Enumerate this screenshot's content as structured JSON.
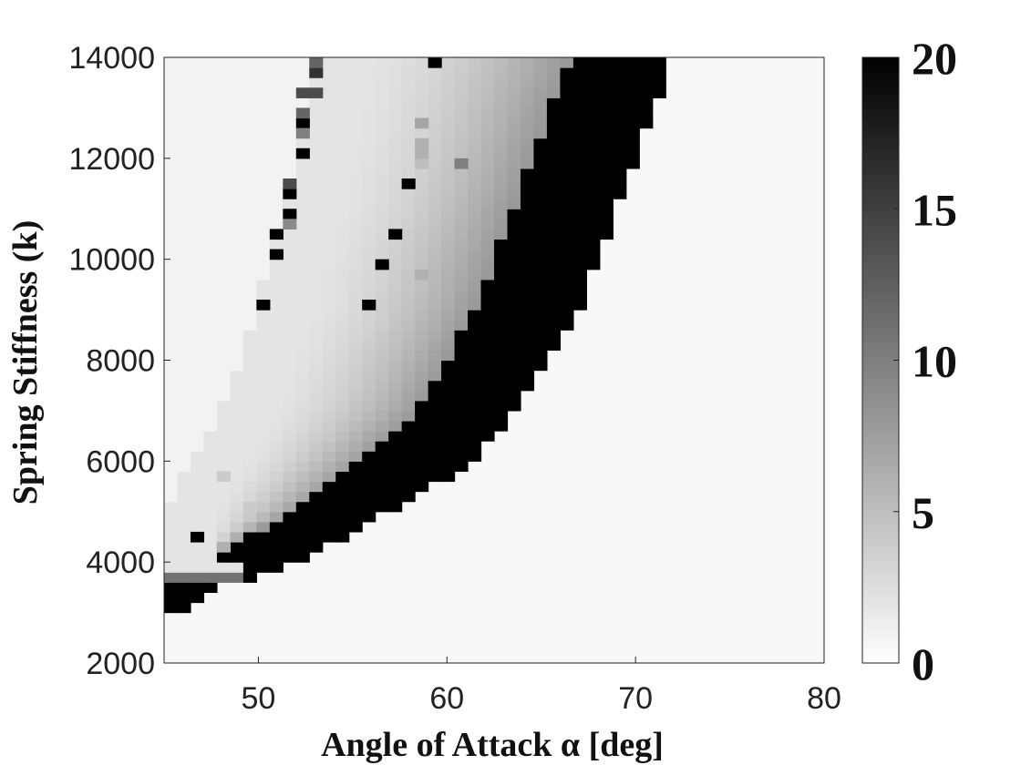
{
  "chart_data": {
    "type": "heatmap",
    "title": "",
    "xlabel": "Angle of Attack α [deg]",
    "ylabel": "Spring Stiffness (k)",
    "xlim": [
      45,
      80
    ],
    "ylim": [
      2000,
      14000
    ],
    "x_ticks": [
      50,
      60,
      70,
      80
    ],
    "x_tick_labels": [
      "50",
      "60",
      "70",
      "80"
    ],
    "y_ticks": [
      2000,
      4000,
      6000,
      8000,
      10000,
      12000,
      14000
    ],
    "y_tick_labels": [
      "2000",
      "4000",
      "6000",
      "8000",
      "10000",
      "12000",
      "14000"
    ],
    "grid": false,
    "colormap": "gray-reversed",
    "color_range": [
      0,
      20
    ],
    "colorbar_ticks": [
      0,
      5,
      10,
      15,
      20
    ],
    "colorbar_tick_labels": [
      "0",
      "5",
      "10",
      "15",
      "20"
    ],
    "background_value": 0.5,
    "cell_width_deg": 0.7,
    "cell_height_k": 200,
    "row_profiles": [
      {
        "k": 3000,
        "a0": 45,
        "a1": 46.2,
        "lo": 20,
        "hi": 20,
        "b0": 46.2,
        "b1": 46.2
      },
      {
        "k": 3600,
        "a0": 45,
        "a1": 48.5,
        "lo": 20,
        "hi": 20,
        "b0": 48.5,
        "b1": 48.5
      },
      {
        "k": 3800,
        "a0": 45,
        "a1": 50.0,
        "lo": 2,
        "hi": 20,
        "b0": 50.0,
        "b1": 51.2
      },
      {
        "k": 4200,
        "a0": 45,
        "a1": 47.5,
        "lo": 2,
        "hi": 20,
        "b0": 47.5,
        "b1": 53.0
      },
      {
        "k": 5000,
        "a0": 45,
        "a1": 47.5,
        "lo": 2,
        "hi": 20,
        "b0": 52.0,
        "b1": 57.0
      },
      {
        "k": 6000,
        "a0": 46.5,
        "a1": 49.0,
        "lo": 2,
        "hi": 20,
        "b0": 55.5,
        "b1": 61.5
      },
      {
        "k": 7000,
        "a0": 48.0,
        "a1": 50.5,
        "lo": 2,
        "hi": 20,
        "b0": 58.5,
        "b1": 63.5
      },
      {
        "k": 8000,
        "a0": 49.0,
        "a1": 51.5,
        "lo": 2,
        "hi": 20,
        "b0": 60.0,
        "b1": 65.5
      },
      {
        "k": 9000,
        "a0": 50.0,
        "a1": 52.5,
        "lo": 2,
        "hi": 20,
        "b0": 61.5,
        "b1": 67.0
      },
      {
        "k": 10000,
        "a0": 50.5,
        "a1": 53.0,
        "lo": 2,
        "hi": 20,
        "b0": 62.5,
        "b1": 68.0
      },
      {
        "k": 11000,
        "a0": 51.5,
        "a1": 54.0,
        "lo": 2,
        "hi": 20,
        "b0": 63.5,
        "b1": 69.0
      },
      {
        "k": 12000,
        "a0": 52.0,
        "a1": 54.5,
        "lo": 2,
        "hi": 20,
        "b0": 64.5,
        "b1": 70.0
      },
      {
        "k": 13000,
        "a0": 52.5,
        "a1": 55.0,
        "lo": 2,
        "hi": 20,
        "b0": 65.5,
        "b1": 71.0
      },
      {
        "k": 14000,
        "a0": 53.0,
        "a1": 55.5,
        "lo": 2,
        "hi": 20,
        "b0": 66.5,
        "b1": 72.0
      }
    ],
    "outliers": [
      {
        "alpha": 46.6,
        "k": 4400,
        "value": 20
      },
      {
        "alpha": 48.0,
        "k": 4200,
        "value": 6
      },
      {
        "alpha": 48.4,
        "k": 5700,
        "value": 4
      },
      {
        "alpha": 49.2,
        "k": 5000,
        "value": 4
      },
      {
        "alpha": 50.3,
        "k": 9000,
        "value": 20
      },
      {
        "alpha": 51.0,
        "k": 10000,
        "value": 20
      },
      {
        "alpha": 51.0,
        "k": 10400,
        "value": 20
      },
      {
        "alpha": 51.7,
        "k": 10800,
        "value": 20
      },
      {
        "alpha": 51.7,
        "k": 11200,
        "value": 20
      },
      {
        "alpha": 51.7,
        "k": 11400,
        "value": 14
      },
      {
        "alpha": 51.7,
        "k": 10600,
        "value": 9
      },
      {
        "alpha": 52.3,
        "k": 12000,
        "value": 20
      },
      {
        "alpha": 52.3,
        "k": 12600,
        "value": 20
      },
      {
        "alpha": 52.3,
        "k": 12400,
        "value": 10
      },
      {
        "alpha": 52.3,
        "k": 12800,
        "value": 12
      },
      {
        "alpha": 52.3,
        "k": 13200,
        "value": 14
      },
      {
        "alpha": 53.0,
        "k": 13200,
        "value": 14
      },
      {
        "alpha": 53.0,
        "k": 13600,
        "value": 16
      },
      {
        "alpha": 53.0,
        "k": 13800,
        "value": 12
      },
      {
        "alpha": 53.0,
        "k": 14000,
        "value": 10
      },
      {
        "alpha": 56.0,
        "k": 9000,
        "value": 20
      },
      {
        "alpha": 56.8,
        "k": 9800,
        "value": 20
      },
      {
        "alpha": 57.4,
        "k": 10400,
        "value": 20
      },
      {
        "alpha": 58.2,
        "k": 11400,
        "value": 20
      },
      {
        "alpha": 59.5,
        "k": 13800,
        "value": 20
      },
      {
        "alpha": 59.5,
        "k": 14000,
        "value": 8
      },
      {
        "alpha": 58.8,
        "k": 12600,
        "value": 7
      },
      {
        "alpha": 58.8,
        "k": 12200,
        "value": 6
      },
      {
        "alpha": 58.8,
        "k": 11800,
        "value": 5
      },
      {
        "alpha": 58.8,
        "k": 12000,
        "value": 6
      },
      {
        "alpha": 61.0,
        "k": 11800,
        "value": 10
      },
      {
        "alpha": 58.8,
        "k": 9600,
        "value": 6
      }
    ]
  }
}
